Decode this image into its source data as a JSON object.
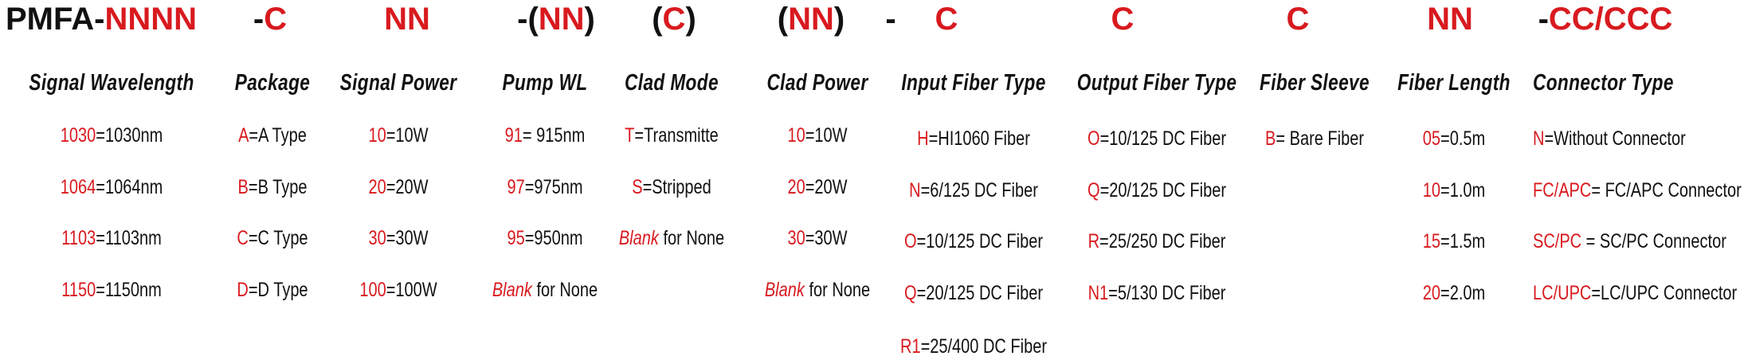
{
  "header": [
    {
      "parts": [
        {
          "text": "PMFA-",
          "red": false
        },
        {
          "text": "NNNN",
          "red": true
        }
      ]
    },
    {
      "parts": [
        {
          "text": "-",
          "red": false
        },
        {
          "text": "C",
          "red": true
        }
      ]
    },
    {
      "parts": [
        {
          "text": "NN",
          "red": true
        }
      ]
    },
    {
      "parts": [
        {
          "text": "-(",
          "red": false
        },
        {
          "text": "NN",
          "red": true
        },
        {
          "text": ")",
          "red": false
        }
      ]
    },
    {
      "parts": [
        {
          "text": "(",
          "red": false
        },
        {
          "text": "C",
          "red": true
        },
        {
          "text": ")",
          "red": false
        }
      ]
    },
    {
      "parts": [
        {
          "text": "(",
          "red": false
        },
        {
          "text": "NN",
          "red": true
        },
        {
          "text": ")",
          "red": false
        }
      ]
    },
    {
      "parts": [
        {
          "text": "-",
          "red": false
        }
      ]
    },
    {
      "parts": [
        {
          "text": "C",
          "red": true
        }
      ]
    },
    {
      "parts": [
        {
          "text": "C",
          "red": true
        }
      ]
    },
    {
      "parts": [
        {
          "text": "C",
          "red": true
        }
      ]
    },
    {
      "parts": [
        {
          "text": "NN",
          "red": true
        }
      ]
    },
    {
      "parts": [
        {
          "text": "-",
          "red": false
        },
        {
          "text": "CC/CCC",
          "red": true
        }
      ]
    }
  ],
  "columns": [
    {
      "title": "Signal Wavelength",
      "items": [
        {
          "code": "1030",
          "text": "=1030nm"
        },
        {
          "code": "1064",
          "text": "=1064nm"
        },
        {
          "code": "1103",
          "text": "=1103nm"
        },
        {
          "code": "1150",
          "text": "=1150nm"
        }
      ]
    },
    {
      "title": "Package",
      "items": [
        {
          "code": "A",
          "text": "=A Type"
        },
        {
          "code": "B",
          "text": "=B Type"
        },
        {
          "code": "C",
          "text": "=C Type"
        },
        {
          "code": "D",
          "text": "=D Type"
        }
      ]
    },
    {
      "title": "Signal Power",
      "items": [
        {
          "code": "10",
          "text": "=10W"
        },
        {
          "code": "20",
          "text": "=20W"
        },
        {
          "code": "30",
          "text": "=30W"
        },
        {
          "code": "100",
          "text": "=100W"
        }
      ]
    },
    {
      "title": "Pump WL",
      "items": [
        {
          "code": "91",
          "text": "= 915nm"
        },
        {
          "code": "97",
          "text": "=975nm"
        },
        {
          "code": "95",
          "text": "=950nm"
        },
        {
          "code": "Blank",
          "text": " for None",
          "italic": true
        }
      ]
    },
    {
      "title": "Clad Mode",
      "items": [
        {
          "code": "T",
          "text": "=Transmitte"
        },
        {
          "code": "S",
          "text": "=Stripped"
        },
        {
          "code": "Blank",
          "text": " for None",
          "italic": true
        }
      ]
    },
    {
      "title": "Clad Power",
      "items": [
        {
          "code": "10",
          "text": "=10W"
        },
        {
          "code": "20",
          "text": "=20W"
        },
        {
          "code": "30",
          "text": "=30W"
        },
        {
          "code": "Blank",
          "text": " for None",
          "italic": true
        }
      ]
    },
    {
      "title": "Input Fiber Type",
      "items": [
        {
          "code": "H",
          "text": "=HI1060 Fiber"
        },
        {
          "code": "N",
          "text": "=6/125 DC Fiber"
        },
        {
          "code": "O",
          "text": "=10/125 DC Fiber"
        },
        {
          "code": "Q",
          "text": "=20/125 DC Fiber"
        },
        {
          "code": "R1",
          "text": "=25/400 DC Fiber"
        }
      ]
    },
    {
      "title": "Output Fiber Type",
      "items": [
        {
          "code": "O",
          "text": "=10/125 DC Fiber"
        },
        {
          "code": "Q",
          "text": "=20/125 DC Fiber"
        },
        {
          "code": "R",
          "text": "=25/250 DC Fiber"
        },
        {
          "code": "N1",
          "text": "=5/130 DC Fiber"
        }
      ]
    },
    {
      "title": "Fiber Sleeve",
      "items": [
        {
          "code": "B",
          "text": "= Bare Fiber"
        }
      ]
    },
    {
      "title": "Fiber Length",
      "items": [
        {
          "code": "05",
          "text": "=0.5m"
        },
        {
          "code": "10",
          "text": "=1.0m"
        },
        {
          "code": "15",
          "text": "=1.5m"
        },
        {
          "code": "20",
          "text": "=2.0m"
        }
      ]
    },
    {
      "title": "Connector Type",
      "items": [
        {
          "code": "N",
          "text": "=Without Connector"
        },
        {
          "code": "FC/APC",
          "text": "= FC/APC Connector"
        },
        {
          "code": "SC/PC",
          "text": " = SC/PC Connector"
        },
        {
          "code": "LC/UPC",
          "text": "=LC/UPC Connector"
        }
      ]
    }
  ]
}
